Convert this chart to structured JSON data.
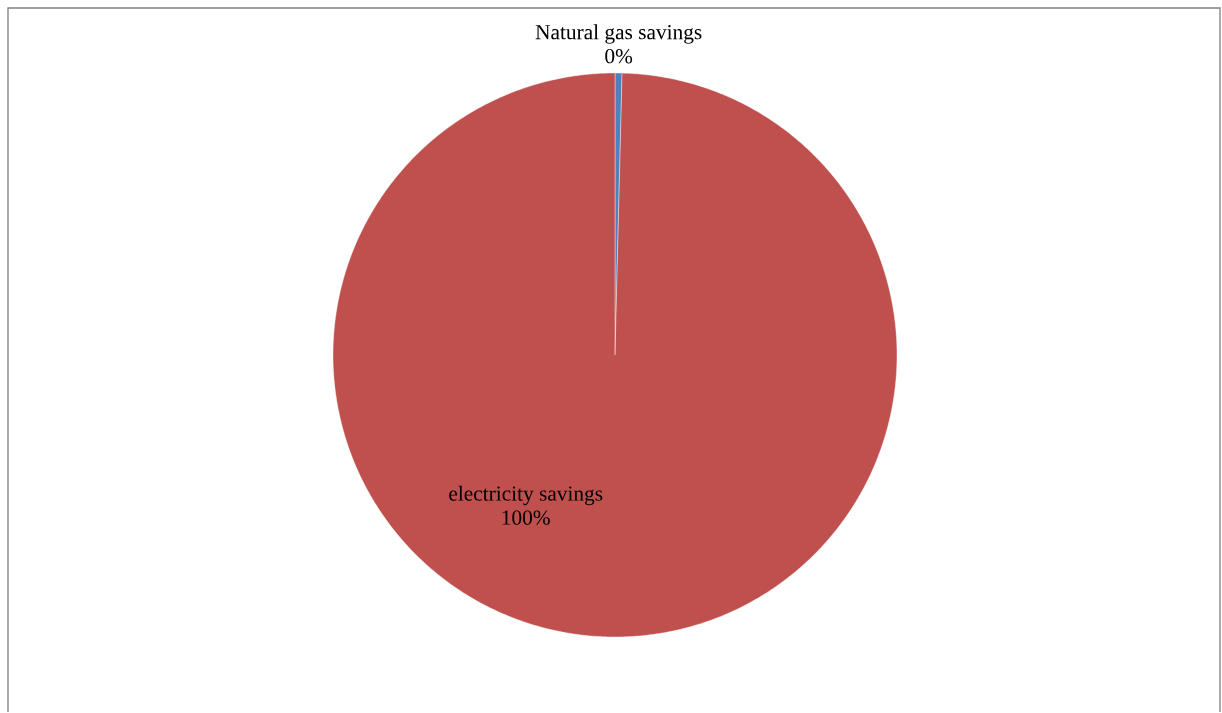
{
  "chart_data": {
    "type": "pie",
    "categories": [
      "Natural gas savings",
      "electricity savings"
    ],
    "values": [
      0.4,
      99.6
    ],
    "colors": [
      "#4f81bd",
      "#c0504d"
    ],
    "value_labels": [
      "0%",
      "100%"
    ]
  }
}
